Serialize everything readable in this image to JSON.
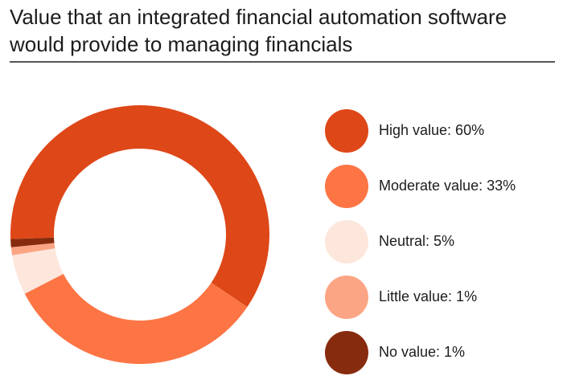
{
  "chart_data": {
    "type": "pie",
    "variant": "donut",
    "title": "Value that an integrated financial automation software would provide to managing financials",
    "unit": "%",
    "slices": [
      {
        "name": "High value",
        "value": 60,
        "color": "#de4718",
        "label": "High value: 60%"
      },
      {
        "name": "Moderate value",
        "value": 33,
        "color": "#fd7544",
        "label": "Moderate value: 33%"
      },
      {
        "name": "Neutral",
        "value": 5,
        "color": "#fde6dc",
        "label": "Neutral: 5%"
      },
      {
        "name": "Little value",
        "value": 1,
        "color": "#fca584",
        "label": "Little value: 1%"
      },
      {
        "name": "No value",
        "value": 1,
        "color": "#872b0e",
        "label": "No value: 1%"
      }
    ],
    "start_angle_deg": 268,
    "direction": "clockwise",
    "legend_position": "right"
  }
}
